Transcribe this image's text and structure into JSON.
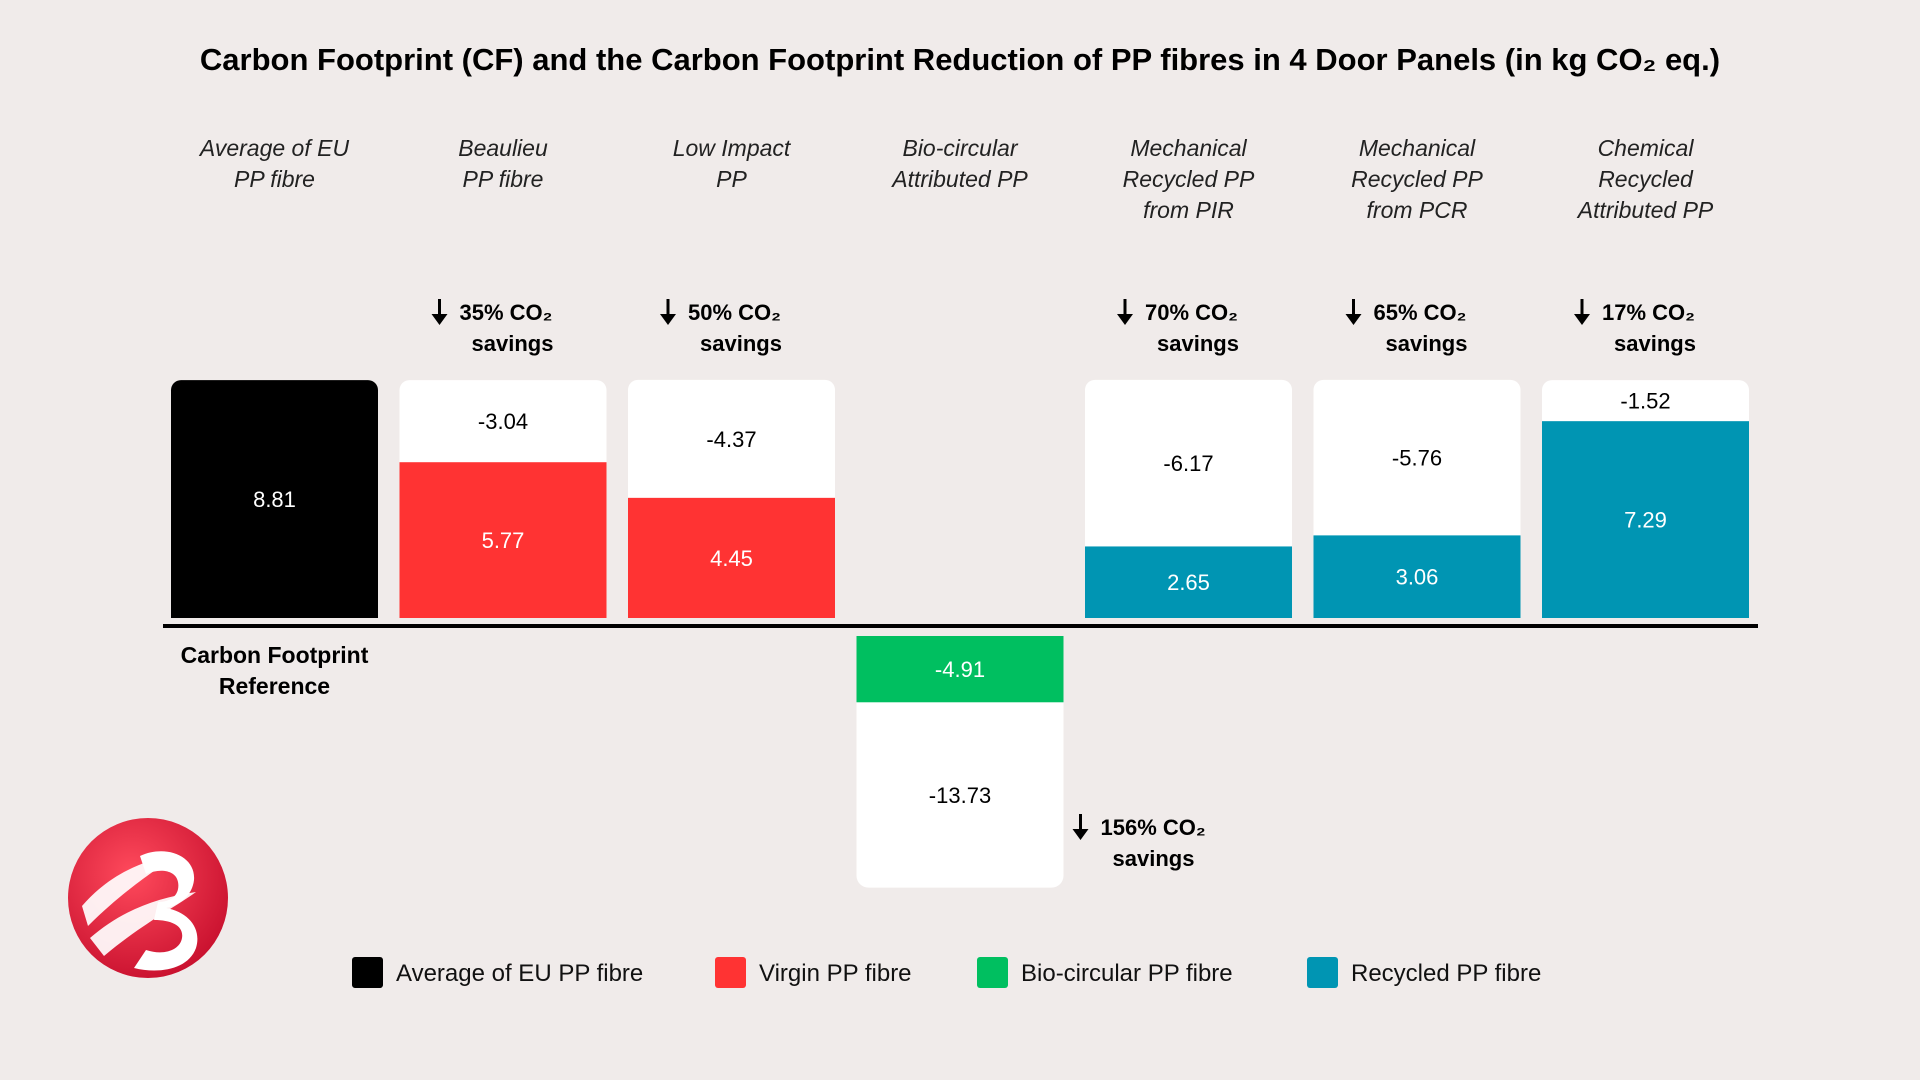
{
  "chart_data": {
    "type": "bar",
    "title": "Carbon Footprint (CF) and the Carbon Footprint Reduction of PP fibres in 4 Door Panels (in kg CO₂ eq.)",
    "units": "kg CO₂ eq.",
    "categories": [
      [
        "Average of EU",
        "PP fibre"
      ],
      [
        "Beaulieu",
        "PP fibre"
      ],
      [
        "Low Impact",
        "PP"
      ],
      [
        "Bio-circular",
        "Attributed PP"
      ],
      [
        "Mechanical",
        "Recycled PP",
        "from PIR"
      ],
      [
        "Mechanical",
        "Recycled PP",
        "from PCR"
      ],
      [
        "Chemical",
        "Recycled",
        "Attributed PP"
      ]
    ],
    "series": [
      {
        "name": "Carbon footprint",
        "values": [
          8.81,
          5.77,
          4.45,
          -4.91,
          2.65,
          3.06,
          7.29
        ],
        "labels": [
          "8.81",
          "5.77",
          "4.45",
          "-4.91",
          "2.65",
          "3.06",
          "7.29"
        ]
      },
      {
        "name": "Carbon footprint reduction",
        "values": [
          0,
          -3.04,
          -4.37,
          -13.73,
          -6.17,
          -5.76,
          -1.52
        ],
        "labels": [
          "",
          "-3.04",
          "-4.37",
          "-13.73",
          "-6.17",
          "-5.76",
          "-1.52"
        ]
      }
    ],
    "fibre_types": [
      "average",
      "virgin",
      "virgin",
      "biocircular",
      "recycled",
      "recycled",
      "recycled"
    ],
    "savings": [
      null,
      {
        "pct": "35%",
        "unit": "CO₂",
        "word": "savings"
      },
      {
        "pct": "50%",
        "unit": "CO₂",
        "word": "savings"
      },
      {
        "pct": "156%",
        "unit": "CO₂",
        "word": "savings"
      },
      {
        "pct": "70%",
        "unit": "CO₂",
        "word": "savings"
      },
      {
        "pct": "65%",
        "unit": "CO₂",
        "word": "savings"
      },
      {
        "pct": "17%",
        "unit": "CO₂",
        "word": "savings"
      }
    ],
    "reference_label": [
      "Carbon Footprint",
      "Reference"
    ],
    "legend": [
      {
        "label": "Average of EU PP fibre",
        "color": "#000000"
      },
      {
        "label": "Virgin PP fibre",
        "color": "#ff3333"
      },
      {
        "label": "Bio-circular PP fibre",
        "color": "#00bf60"
      },
      {
        "label": "Recycled PP fibre",
        "color": "#0095b3"
      }
    ]
  },
  "colors": {
    "average": "#000000",
    "virgin": "#ff3333",
    "biocircular": "#00bf60",
    "recycled": "#0095b3",
    "reduction": "#ffffff",
    "background": "#f0ebea",
    "logo": "#d91c37"
  },
  "logo": {
    "icon": "beaulieu-b-logo-icon"
  }
}
